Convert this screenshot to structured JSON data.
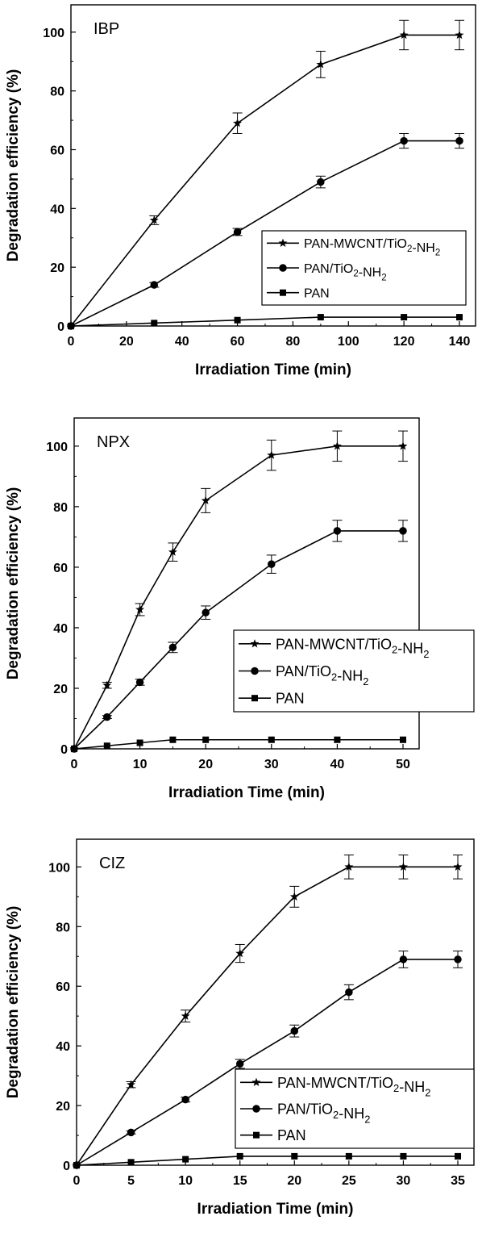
{
  "chart_data": [
    {
      "type": "line",
      "annotation": "IBP",
      "xlabel": "Irradiation Time (min)",
      "ylabel": "Degradation efficiency (%)",
      "xlim": [
        0,
        140
      ],
      "ylim": [
        0,
        100
      ],
      "xticks": [
        0,
        20,
        40,
        60,
        80,
        100,
        120,
        140
      ],
      "yticks": [
        0,
        20,
        40,
        60,
        80,
        100
      ],
      "legend_position": "center-right",
      "series": [
        {
          "name": "PAN-MWCNT/TiO2-NH2",
          "marker": "star",
          "x": [
            0,
            30,
            60,
            90,
            120,
            140
          ],
          "y": [
            0,
            36,
            69,
            89,
            99,
            99
          ],
          "error": [
            0,
            1.5,
            3.5,
            4.5,
            5,
            5
          ]
        },
        {
          "name": "PAN/TiO2-NH2",
          "marker": "circle",
          "x": [
            0,
            30,
            60,
            90,
            120,
            140
          ],
          "y": [
            0,
            14,
            32,
            49,
            63,
            63
          ],
          "error": [
            0,
            0.8,
            1.2,
            2,
            2.5,
            2.5
          ]
        },
        {
          "name": "PAN",
          "marker": "square",
          "x": [
            0,
            30,
            60,
            90,
            120,
            140
          ],
          "y": [
            0,
            1,
            2,
            3,
            3,
            3
          ],
          "error": [
            0,
            0,
            0,
            0,
            0,
            0
          ]
        }
      ]
    },
    {
      "type": "line",
      "annotation": "NPX",
      "xlabel": "Irradiation Time (min)",
      "ylabel": "Degradation efficiency (%)",
      "xlim": [
        0,
        50
      ],
      "ylim": [
        0,
        100
      ],
      "xticks": [
        0,
        10,
        20,
        30,
        40,
        50
      ],
      "yticks": [
        0,
        20,
        40,
        60,
        80,
        100
      ],
      "legend_position": "bottom-right",
      "series": [
        {
          "name": "PAN-MWCNT/TiO2-NH2",
          "marker": "star",
          "x": [
            0,
            5,
            10,
            15,
            20,
            30,
            40,
            50
          ],
          "y": [
            0,
            21,
            46,
            65,
            82,
            97,
            100,
            100
          ],
          "error": [
            0,
            1,
            2,
            3,
            4,
            5,
            5,
            5
          ]
        },
        {
          "name": "PAN/TiO2-NH2",
          "marker": "circle",
          "x": [
            0,
            5,
            10,
            15,
            20,
            30,
            40,
            50
          ],
          "y": [
            0,
            10.5,
            22,
            33.5,
            45,
            61,
            72,
            72
          ],
          "error": [
            0,
            0.5,
            1,
            1.7,
            2.2,
            3,
            3.5,
            3.5
          ]
        },
        {
          "name": "PAN",
          "marker": "square",
          "x": [
            0,
            5,
            10,
            15,
            20,
            30,
            40,
            50
          ],
          "y": [
            0,
            1,
            2,
            3,
            3,
            3,
            3,
            3
          ],
          "error": [
            0,
            0,
            0,
            0,
            0,
            0,
            0,
            0
          ]
        }
      ]
    },
    {
      "type": "line",
      "annotation": "CIZ",
      "xlabel": "Irradiation Time (min)",
      "ylabel": "Degradation efficiency (%)",
      "xlim": [
        0,
        35
      ],
      "ylim": [
        0,
        100
      ],
      "xticks": [
        0,
        5,
        10,
        15,
        20,
        25,
        30,
        35
      ],
      "yticks": [
        0,
        20,
        40,
        60,
        80,
        100
      ],
      "legend_position": "bottom-right",
      "series": [
        {
          "name": "PAN-MWCNT/TiO2-NH2",
          "marker": "star",
          "x": [
            0,
            5,
            10,
            15,
            20,
            25,
            30,
            35
          ],
          "y": [
            0,
            27,
            50,
            71,
            90,
            100,
            100,
            100
          ],
          "error": [
            0,
            1,
            2,
            3,
            3.5,
            4,
            4,
            4
          ]
        },
        {
          "name": "PAN/TiO2-NH2",
          "marker": "circle",
          "x": [
            0,
            5,
            10,
            15,
            20,
            25,
            30,
            35
          ],
          "y": [
            0,
            11,
            22,
            34,
            45,
            58,
            69,
            69
          ],
          "error": [
            0,
            0.5,
            0.8,
            1.5,
            2,
            2.5,
            2.8,
            2.8
          ]
        },
        {
          "name": "PAN",
          "marker": "square",
          "x": [
            0,
            5,
            10,
            15,
            20,
            25,
            30,
            35
          ],
          "y": [
            0,
            1,
            2,
            3,
            3,
            3,
            3,
            3
          ],
          "error": [
            0,
            0,
            0,
            0,
            0,
            0,
            0,
            0
          ]
        }
      ]
    }
  ]
}
